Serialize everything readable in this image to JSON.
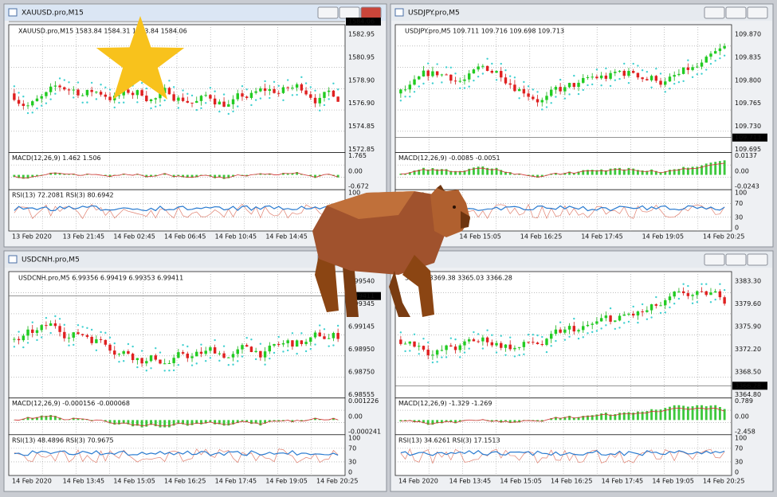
{
  "windows": [
    {
      "title": "XAUUSD.pro,M15",
      "header": "XAUUSD.pro,M15 1583.84 1584.31 1583.84 1584.06",
      "price_ticks": [
        "1582.95",
        "1580.95",
        "1578.90",
        "1576.90",
        "1574.85",
        "1572.85"
      ],
      "current_price": "1584.06",
      "macd_label": "MACD(12,26,9) 1.462 1.506",
      "macd_ticks": [
        "1.765",
        "0.00",
        "-0.672"
      ],
      "rsi_label": "RSI(13) 72.2081 RSI(3) 80.6942",
      "rsi_ticks": [
        "100",
        "70",
        "30",
        "0"
      ],
      "time_labels": [
        "13 Feb 2020",
        "13 Feb 21:45",
        "14 Feb 02:45",
        "14 Feb 06:45",
        "14 Feb 10:45",
        "14 Feb 14:45",
        "14 Feb 18:45"
      ]
    },
    {
      "title": "USDJPY.pro,M5",
      "header": "USDJPY.pro,M5 109.711 109.716 109.698 109.713",
      "price_ticks": [
        "109.870",
        "109.835",
        "109.800",
        "109.765",
        "109.730",
        "109.695"
      ],
      "current_price": "109.713",
      "macd_label": "MACD(12,26,9) -0.0085 -0.0051",
      "macd_ticks": [
        "0.0137",
        "0.00",
        "-0.0243"
      ],
      "rsi_label": "16.0763",
      "rsi_ticks": [
        "100",
        "70",
        "30",
        "0"
      ],
      "time_labels": [
        "13:45",
        "14 Feb 15:05",
        "14 Feb 16:25",
        "14 Feb 17:45",
        "14 Feb 19:05",
        "14 Feb 20:25"
      ]
    },
    {
      "title": "USDCNH.pro,M5",
      "header": "USDCNH.pro,M5 6.99356 6.99419 6.99353 6.99411",
      "price_ticks": [
        "6.99540",
        "6.99345",
        "6.99145",
        "6.98950",
        "6.98750",
        "6.98555"
      ],
      "current_price": "6.99411",
      "macd_label": "MACD(12,26,9) -0.000156 -0.000068",
      "macd_ticks": [
        "0.001226",
        "0.00",
        "-0.000241"
      ],
      "rsi_label": "RSI(13) 48.4896 RSI(3) 70.9675",
      "rsi_ticks": [
        "100",
        "70",
        "30",
        "0"
      ],
      "time_labels": [
        "14 Feb 2020",
        "14 Feb 13:45",
        "14 Feb 15:05",
        "14 Feb 16:25",
        "14 Feb 17:45",
        "14 Feb 19:05",
        "14 Feb 20:25"
      ]
    },
    {
      "title": "",
      "header": "369.28 3369.38 3365.03 3366.28",
      "price_ticks": [
        "3383.30",
        "3379.60",
        "3375.90",
        "3372.20",
        "3368.50",
        "3364.80"
      ],
      "current_price": "3366.28",
      "macd_label": "MACD(12,26,9) -1.329 -1.269",
      "macd_ticks": [
        "0.789",
        "0.00",
        "-2.458"
      ],
      "rsi_label": "RSI(13) 34.6261 RSI(3) 17.1513",
      "rsi_ticks": [
        "100",
        "70",
        "30",
        "0"
      ],
      "time_labels": [
        "14 Feb 2020",
        "14 Feb 13:45",
        "14 Feb 15:05",
        "14 Feb 16:25",
        "14 Feb 17:45",
        "14 Feb 19:05",
        "14 Feb 20:25"
      ]
    }
  ]
}
